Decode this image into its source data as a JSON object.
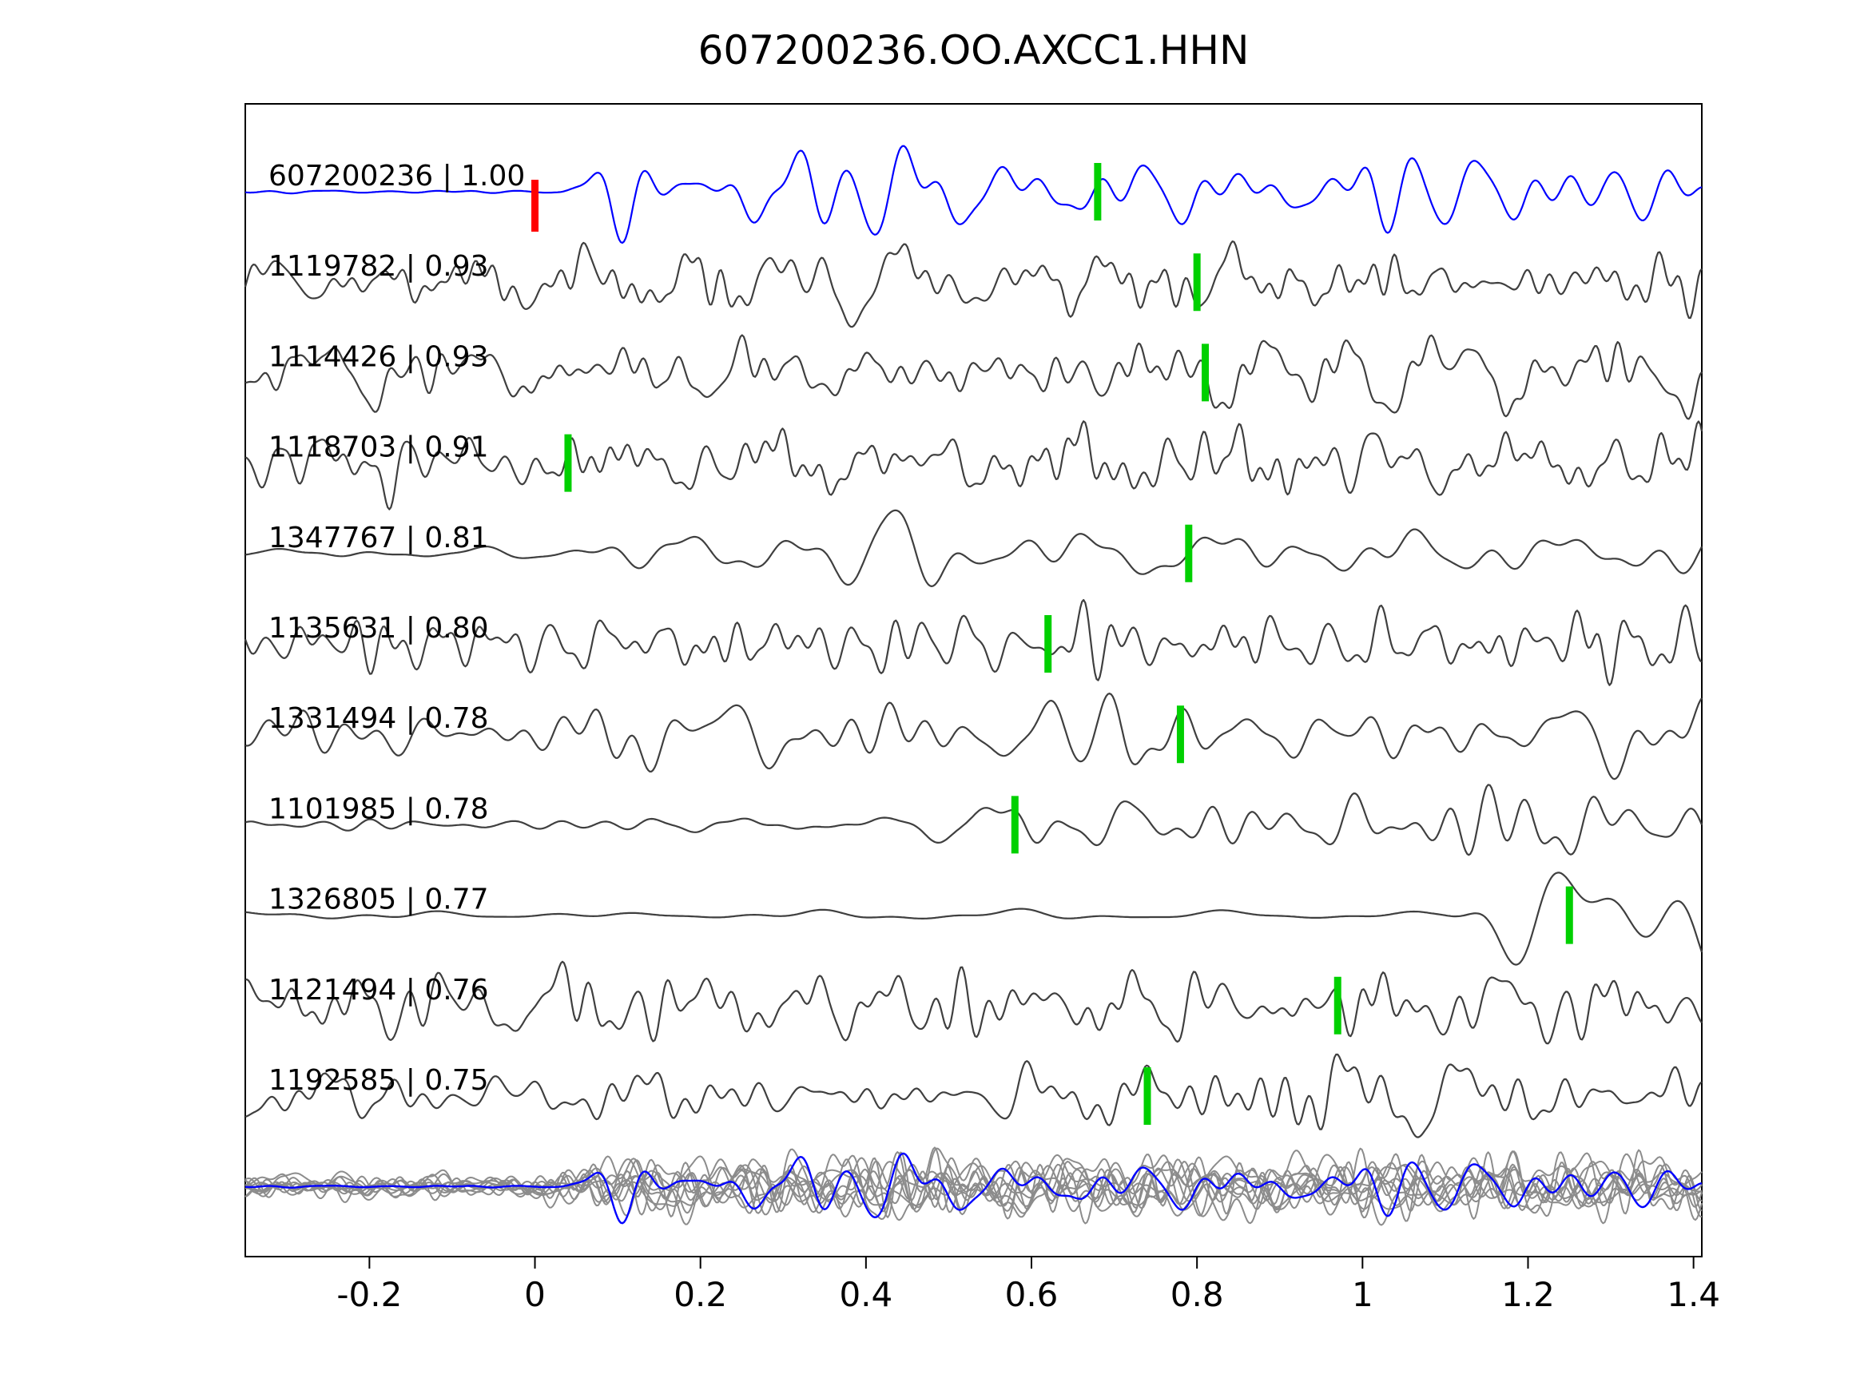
{
  "chart_data": {
    "type": "line",
    "title": "607200236.OO.AXCC1.HHN",
    "xlabel": "",
    "ylabel": "",
    "xlim": [
      -0.35,
      1.41
    ],
    "x_ticks": [
      -0.2,
      0,
      0.2,
      0.4,
      0.6,
      0.8,
      1,
      1.2,
      1.4
    ],
    "x_tick_labels": [
      "-0.2",
      "0",
      "0.2",
      "0.4",
      "0.6",
      "0.8",
      "1",
      "1.2",
      "1.4"
    ],
    "grid": false,
    "legend": null,
    "colors": {
      "template_trace": "#0000ff",
      "match_trace": "#3f3f3f",
      "overlay_trace": "#8c8c8c",
      "pick_marker": "#00d000",
      "origin_marker": "#ff0000",
      "axis": "#000000",
      "background": "#ffffff"
    },
    "traces": [
      {
        "id": "607200236",
        "score": 1.0,
        "label": "607200236 | 1.00",
        "pick_x": 0.68,
        "origin_x": 0.0,
        "role": "template"
      },
      {
        "id": "1119782",
        "score": 0.93,
        "label": "1119782 | 0.93",
        "pick_x": 0.8,
        "role": "match"
      },
      {
        "id": "1114426",
        "score": 0.93,
        "label": "1114426 | 0.93",
        "pick_x": 0.81,
        "role": "match"
      },
      {
        "id": "1118703",
        "score": 0.91,
        "label": "1118703 | 0.91",
        "pick_x": 0.04,
        "role": "match"
      },
      {
        "id": "1347767",
        "score": 0.81,
        "label": "1347767 | 0.81",
        "pick_x": 0.79,
        "role": "match"
      },
      {
        "id": "1135631",
        "score": 0.8,
        "label": "1135631 | 0.80",
        "pick_x": 0.62,
        "role": "match"
      },
      {
        "id": "1331494",
        "score": 0.78,
        "label": "1331494 | 0.78",
        "pick_x": 0.78,
        "role": "match"
      },
      {
        "id": "1101985",
        "score": 0.78,
        "label": "1101985 | 0.78",
        "pick_x": 0.58,
        "role": "match"
      },
      {
        "id": "1326805",
        "score": 0.77,
        "label": "1326805 | 0.77",
        "pick_x": 1.25,
        "role": "match"
      },
      {
        "id": "1121494",
        "score": 0.76,
        "label": "1121494 | 0.76",
        "pick_x": 0.97,
        "role": "match"
      },
      {
        "id": "1192585",
        "score": 0.75,
        "label": "1192585 | 0.75",
        "pick_x": 0.74,
        "role": "match"
      }
    ],
    "overlay_row": {
      "gray_trace_count": 10,
      "includes_template": true
    }
  }
}
